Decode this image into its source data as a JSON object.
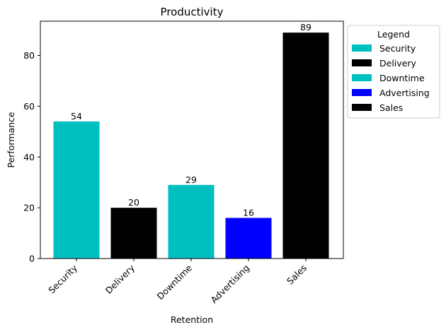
{
  "chart_data": {
    "type": "bar",
    "title": "Productivity",
    "xlabel": "Retention",
    "ylabel": "Performance",
    "categories": [
      "Security",
      "Delivery",
      "Downtime",
      "Advertising",
      "Sales"
    ],
    "values": [
      54,
      20,
      29,
      16,
      89
    ],
    "colors": [
      "#00bfbf",
      "#000000",
      "#00bfbf",
      "#0000ff",
      "#000000"
    ],
    "ylim": [
      0,
      93.5
    ],
    "yticks": [
      0,
      20,
      40,
      60,
      80
    ],
    "grid": false,
    "legend": {
      "title": "Legend",
      "placement": "outside-right",
      "entries": [
        "Security",
        "Delivery",
        "Downtime",
        "Advertising",
        "Sales"
      ]
    }
  }
}
